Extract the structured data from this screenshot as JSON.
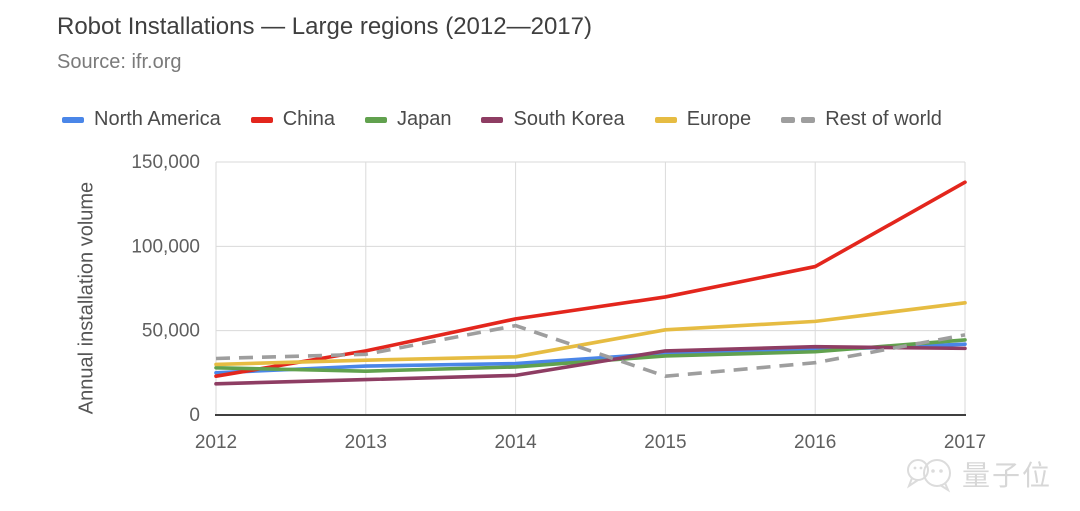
{
  "header": {
    "title": "Robot Installations — Large regions (2012—2017)",
    "subtitle": "Source: ifr.org"
  },
  "watermark": {
    "text": "量子位"
  },
  "chart_data": {
    "type": "line",
    "title": "Robot Installations — Large regions (2012—2017)",
    "xlabel": "",
    "ylabel": "Annual installation volume",
    "x": [
      2012,
      2013,
      2014,
      2015,
      2016,
      2017
    ],
    "series": [
      {
        "name": "North America",
        "color": "#4a86e8",
        "dashed": false,
        "values": [
          25000,
          29000,
          30500,
          36500,
          38500,
          42000
        ]
      },
      {
        "name": "China",
        "color": "#e3261d",
        "dashed": false,
        "values": [
          23000,
          38000,
          57000,
          70000,
          88000,
          138000
        ]
      },
      {
        "name": "Japan",
        "color": "#61a14e",
        "dashed": false,
        "values": [
          28000,
          26000,
          28500,
          35000,
          37500,
          44500
        ]
      },
      {
        "name": "South Korea",
        "color": "#8e3d63",
        "dashed": false,
        "values": [
          18500,
          21000,
          23500,
          38000,
          40500,
          39500
        ]
      },
      {
        "name": "Europe",
        "color": "#e6bc42",
        "dashed": false,
        "values": [
          30000,
          32500,
          34500,
          50500,
          55500,
          66500
        ]
      },
      {
        "name": "Rest of world",
        "color": "#9e9e9e",
        "dashed": true,
        "values": [
          33500,
          36000,
          53000,
          23000,
          31000,
          47500
        ]
      }
    ],
    "ylim": [
      0,
      150000
    ],
    "yticks": [
      0,
      50000,
      100000,
      150000
    ],
    "ytick_labels": [
      "0",
      "50,000",
      "100,000",
      "150,000"
    ],
    "grid": true,
    "legend_position": "top"
  }
}
